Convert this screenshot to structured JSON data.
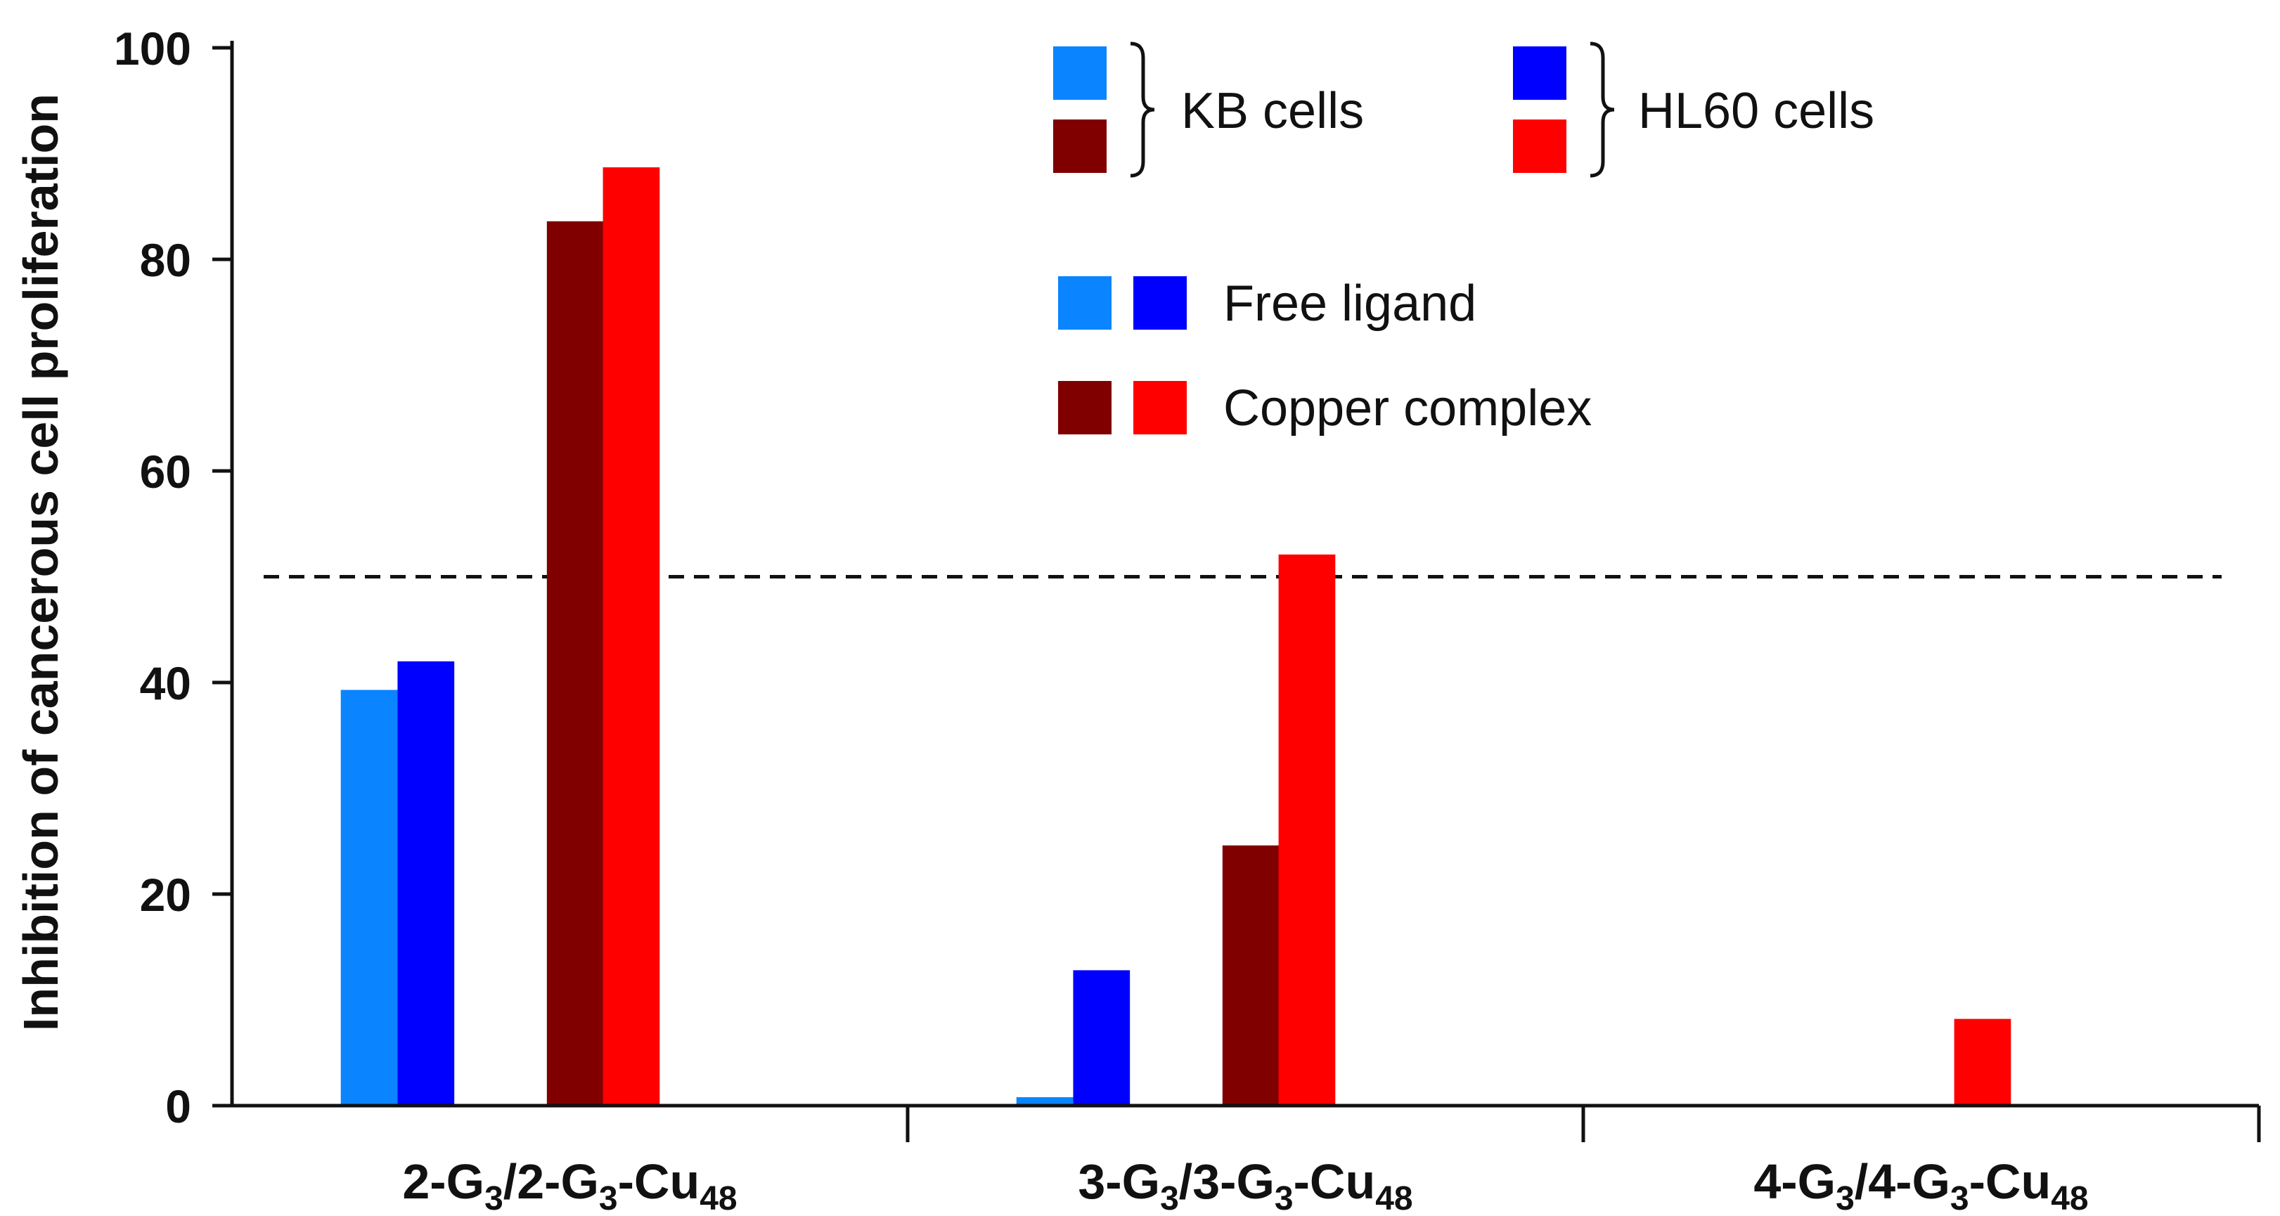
{
  "chart_data": {
    "type": "bar",
    "ylabel": "Inhibition of cancerous cell proliferation",
    "xlabel": "",
    "ylim": [
      0,
      100
    ],
    "yticks": [
      0,
      20,
      40,
      60,
      80,
      100
    ],
    "reference_line": {
      "y": 50,
      "style": "dashed"
    },
    "categories": [
      {
        "base": "2-G",
        "sub1": "3",
        "mid": "/2-G",
        "sub2": "3",
        "suffix": "-Cu",
        "sub3": "48"
      },
      {
        "base": "3-G",
        "sub1": "3",
        "mid": "/3-G",
        "sub2": "3",
        "suffix": "-Cu",
        "sub3": "48"
      },
      {
        "base": "4-G",
        "sub1": "3",
        "mid": "/4-G",
        "sub2": "3",
        "suffix": "-Cu",
        "sub3": "48"
      }
    ],
    "series": [
      {
        "name": "KB cells – Free ligand",
        "color": "#0a84ff",
        "values": [
          39.3,
          0.8,
          0
        ]
      },
      {
        "name": "HL60 cells – Free ligand",
        "color": "#0000ff",
        "values": [
          42.0,
          12.8,
          0
        ]
      },
      {
        "name": "KB cells – Copper complex",
        "color": "#800000",
        "values": [
          83.6,
          24.6,
          0
        ]
      },
      {
        "name": "HL60 cells – Copper complex",
        "color": "#ff0000",
        "values": [
          88.7,
          52.1,
          8.2
        ]
      }
    ],
    "legend": {
      "cell_groups": [
        {
          "label": "KB cells",
          "colors": [
            "#0a84ff",
            "#800000"
          ]
        },
        {
          "label": "HL60 cells",
          "colors": [
            "#0000ff",
            "#ff0000"
          ]
        }
      ],
      "treatments": [
        {
          "label": "Free ligand",
          "colors": [
            "#0a84ff",
            "#0000ff"
          ]
        },
        {
          "label": "Copper complex",
          "colors": [
            "#800000",
            "#ff0000"
          ]
        }
      ]
    }
  }
}
